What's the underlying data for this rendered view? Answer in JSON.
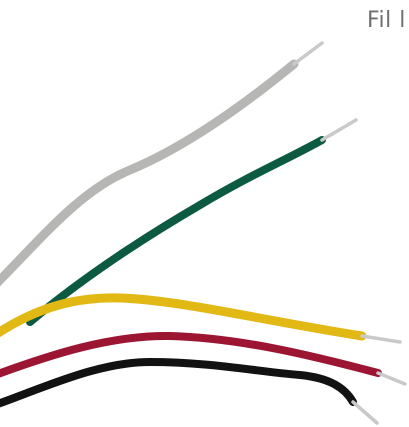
{
  "caption": "Fil l",
  "wires": [
    {
      "color_name": "grey",
      "color": "#b6b6b4",
      "shade": "#8f8f8d"
    },
    {
      "color_name": "green",
      "color": "#0d5a43",
      "shade": "#083a2b"
    },
    {
      "color_name": "yellow",
      "color": "#e2b815",
      "shade": "#b08c08"
    },
    {
      "color_name": "red",
      "color": "#9c1633",
      "shade": "#6c0d22"
    },
    {
      "color_name": "black",
      "color": "#121212",
      "shade": "#000000"
    }
  ],
  "conductor_color": "#c9c9c9"
}
